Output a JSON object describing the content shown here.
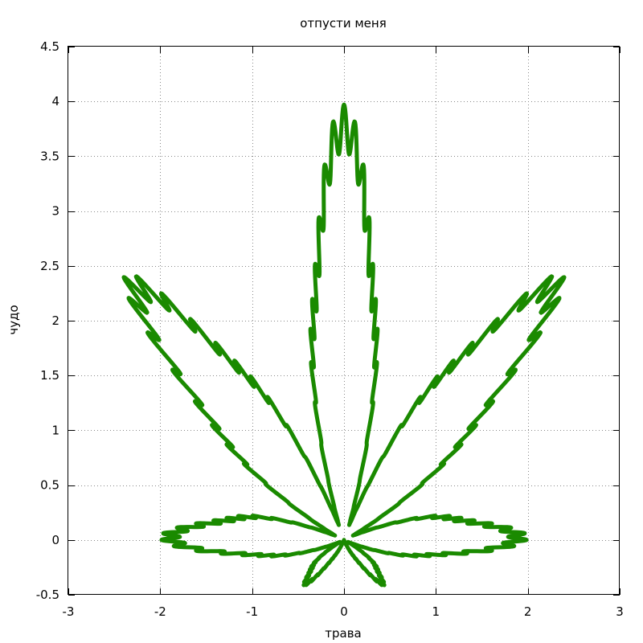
{
  "chart_data": {
    "type": "line",
    "title": "отпусти меня",
    "xlabel": "трава",
    "ylabel": "чудо",
    "xlim": [
      -3,
      3
    ],
    "ylim": [
      -0.5,
      4.5
    ],
    "x_ticks": [
      -3,
      -2,
      -1,
      0,
      1,
      2,
      3
    ],
    "y_ticks": [
      -0.5,
      0,
      0.5,
      1,
      1.5,
      2,
      2.5,
      3,
      3.5,
      4,
      4.5
    ],
    "x_tick_labels": [
      "-3",
      "-2",
      "-1",
      "0",
      "1",
      "2",
      "3"
    ],
    "y_tick_labels": [
      "-0.5",
      "0",
      "0.5",
      "1",
      "1.5",
      "2",
      "2.5",
      "3",
      "3.5",
      "4",
      "4.5"
    ],
    "grid": true,
    "legend": "none",
    "series": [
      {
        "color": "#1a8a00",
        "equation": "r(t) = (1 + 0.9cos 8t)(1 + 0.1cos 24t)(0.9 + 0.05cos 200t)(1 + sin t), x = r cos t, y = r sin t, t ∈ [0, 2π]",
        "x": [
          0,
          0.41,
          0.04,
          0.13,
          2.08,
          0.83,
          0.42,
          0.47,
          2.49,
          1.62,
          0.39,
          0.06,
          0,
          -0.06,
          -0.39,
          -1.62,
          -2.49,
          -0.47,
          -0.42,
          -0.83,
          -2.08,
          -0.13,
          -0.04,
          -0.41,
          0
        ],
        "y": [
          0,
          -0.35,
          0.04,
          0.23,
          0.02,
          0.6,
          0.12,
          0.22,
          2.55,
          1.65,
          0.95,
          0.17,
          4.18,
          0.17,
          0.95,
          1.65,
          2.55,
          0.22,
          0.12,
          0.6,
          0.02,
          0.23,
          0.04,
          -0.35,
          0
        ]
      }
    ]
  }
}
